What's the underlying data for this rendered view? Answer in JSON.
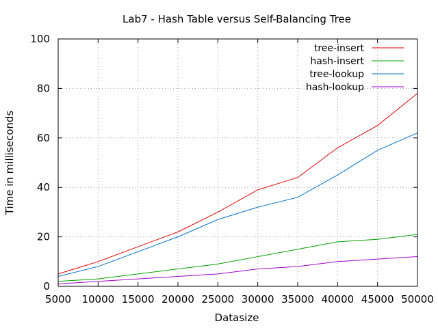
{
  "chart_data": {
    "type": "line",
    "title": "Lab7 - Hash Table versus Self-Balancing Tree",
    "xlabel": "Datasize",
    "ylabel": "Time in milliseconds",
    "xlim": [
      5000,
      50000
    ],
    "ylim": [
      0,
      100
    ],
    "x_ticks": [
      "5000",
      "10000",
      "15000",
      "20000",
      "25000",
      "30000",
      "35000",
      "40000",
      "45000",
      "50000"
    ],
    "y_ticks": [
      "0",
      "20",
      "40",
      "60",
      "80",
      "100"
    ],
    "grid": true,
    "legend_position": "top-right",
    "x": [
      5000,
      10000,
      15000,
      20000,
      25000,
      30000,
      35000,
      40000,
      45000,
      50000
    ],
    "series": [
      {
        "name": "tree-insert",
        "color": "#e00000",
        "values": [
          5,
          10,
          16,
          22,
          30,
          39,
          44,
          56,
          65,
          78
        ]
      },
      {
        "name": "hash-insert",
        "color": "#00a000",
        "values": [
          2,
          3,
          5,
          7,
          9,
          12,
          15,
          18,
          19,
          21
        ]
      },
      {
        "name": "tree-lookup",
        "color": "#0070c8",
        "values": [
          4,
          8,
          14,
          20,
          27,
          32,
          36,
          45,
          55,
          62
        ]
      },
      {
        "name": "hash-lookup",
        "color": "#a000c8",
        "values": [
          1,
          2,
          3,
          4,
          5,
          7,
          8,
          10,
          11,
          12
        ]
      }
    ]
  }
}
